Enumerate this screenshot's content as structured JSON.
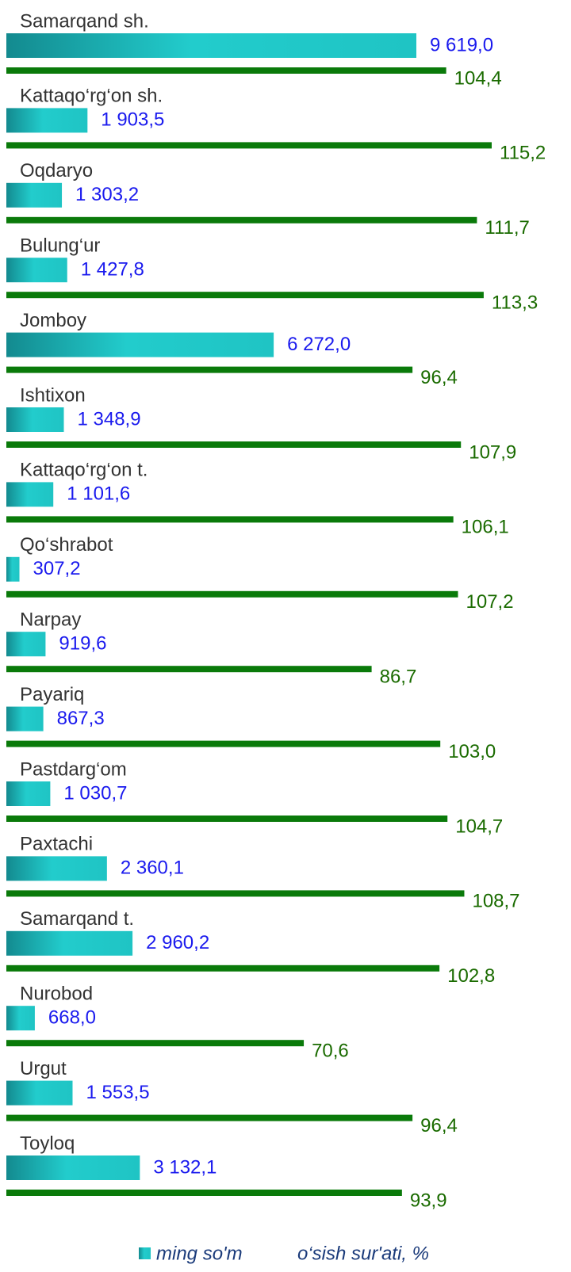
{
  "chart_data": {
    "type": "hbar",
    "categories": [
      "Samarqand sh.",
      "Kattaqo‘rg‘on sh.",
      "Oqdaryo",
      "Bulung‘ur",
      "Jomboy",
      "Ishtixon",
      "Kattaqo‘rg‘on t.",
      "Qo‘shrabot",
      "Narpay",
      "Payariq",
      "Pastdarg‘om",
      "Paxtachi",
      "Samarqand t.",
      "Nurobod",
      "Urgut",
      "Toyloq"
    ],
    "series": [
      {
        "name": "ming so'm",
        "color": "#22cccc",
        "values": [
          9619.0,
          1903.5,
          1303.2,
          1427.8,
          6272.0,
          1348.9,
          1101.6,
          307.2,
          919.6,
          867.3,
          1030.7,
          2360.1,
          2960.2,
          668.0,
          1553.5,
          3132.1
        ],
        "value_labels": [
          "9 619,0",
          "1 903,5",
          "1 303,2",
          "1 427,8",
          "6 272,0",
          "1 348,9",
          "1 101,6",
          "307,2",
          "919,6",
          "867,3",
          "1 030,7",
          "2 360,1",
          "2 960,2",
          "668,0",
          "1 553,5",
          "3 132,1"
        ]
      },
      {
        "name": "o‘sish sur'ati, %",
        "color": "#0a7a0a",
        "values": [
          104.4,
          115.2,
          111.7,
          113.3,
          96.4,
          107.9,
          106.1,
          107.2,
          86.7,
          103.0,
          104.7,
          108.7,
          102.8,
          70.6,
          96.4,
          93.9
        ],
        "value_labels": [
          "104,4",
          "115,2",
          "111,7",
          "113,3",
          "96,4",
          "107,9",
          "106,1",
          "107,2",
          "86,7",
          "103,0",
          "104,7",
          "108,7",
          "102,8",
          "70,6",
          "96,4",
          "93,9"
        ]
      }
    ]
  }
}
